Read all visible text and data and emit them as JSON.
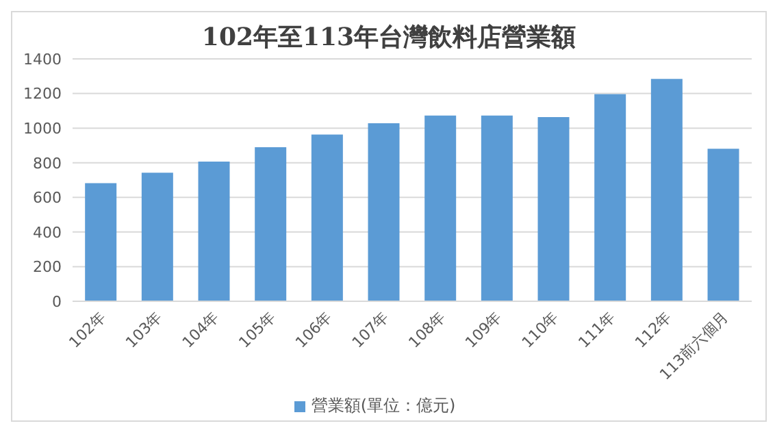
{
  "chart_data": {
    "type": "bar",
    "title": "102年至113年台灣飲料店營業額",
    "categories": [
      "102年",
      "103年",
      "104年",
      "105年",
      "106年",
      "107年",
      "108年",
      "109年",
      "110年",
      "111年",
      "112年",
      "113前六個月"
    ],
    "series": [
      {
        "name": "營業額(單位：億元)",
        "color": "#5b9bd5",
        "values": [
          682,
          743,
          807,
          890,
          963,
          1028,
          1073,
          1073,
          1064,
          1196,
          1284,
          881
        ]
      }
    ],
    "ylim": [
      0,
      1400
    ],
    "yticks": [
      0,
      200,
      400,
      600,
      800,
      1000,
      1200,
      1400
    ],
    "grid": "y",
    "legend": "bottom"
  }
}
